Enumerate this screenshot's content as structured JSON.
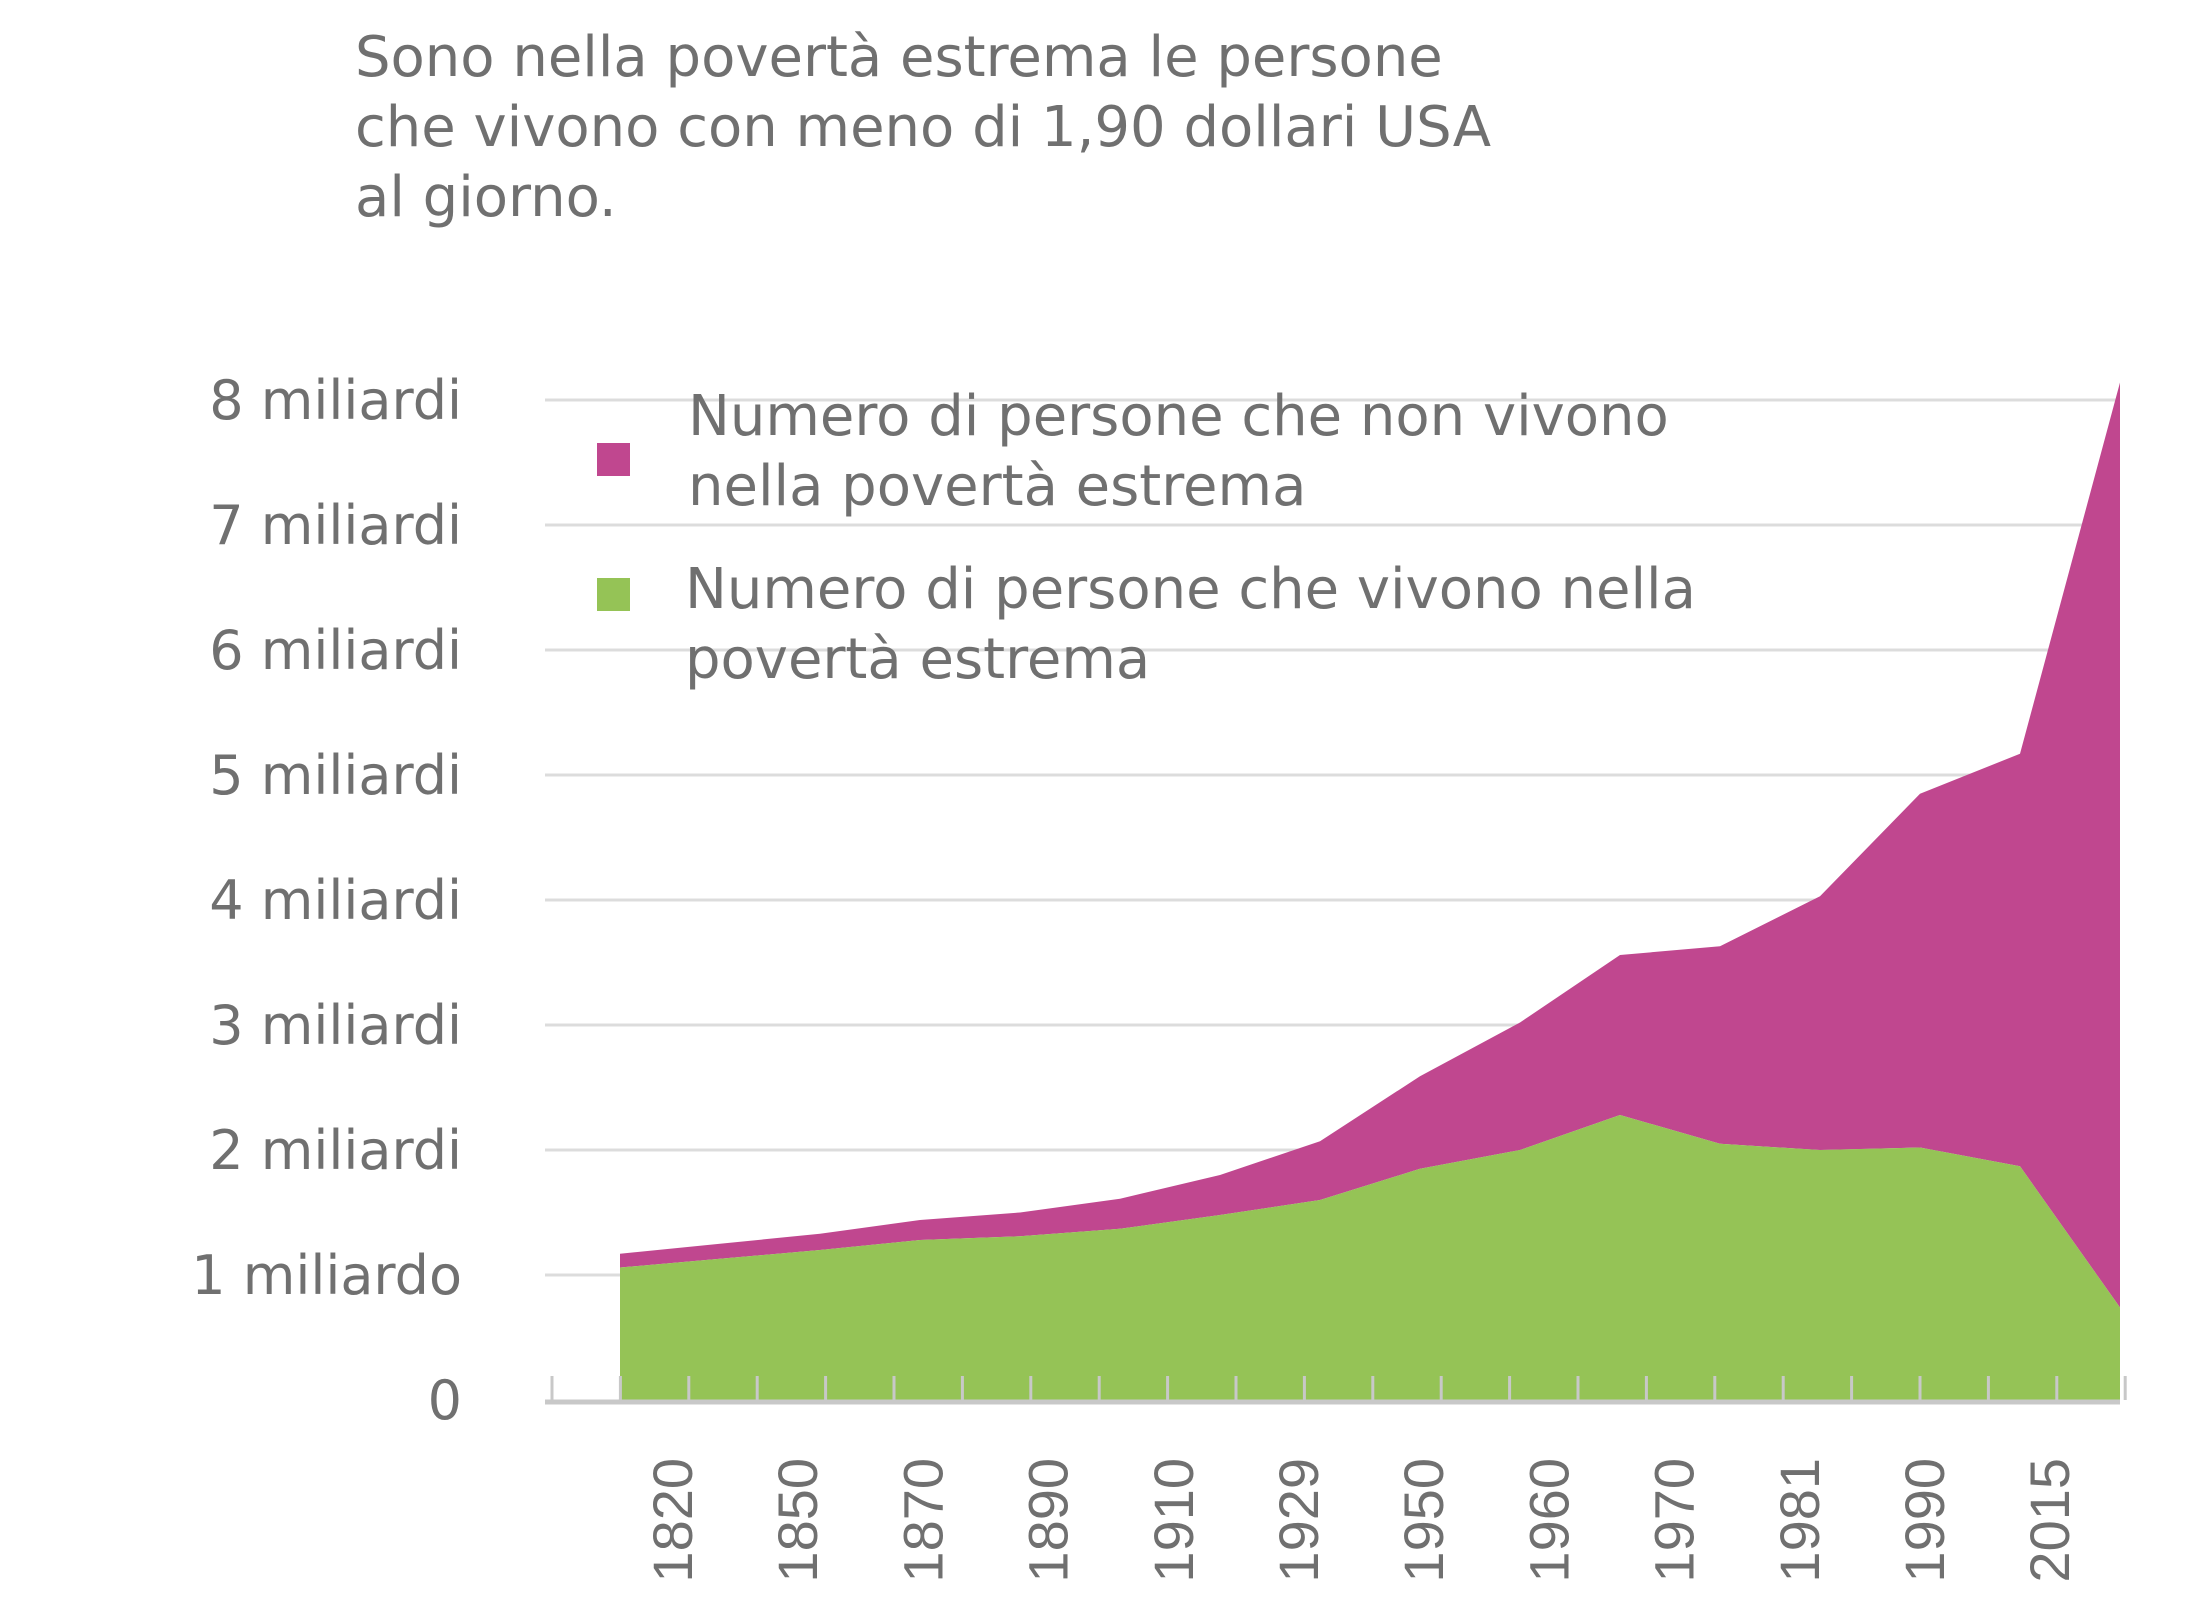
{
  "chart_data": {
    "type": "area",
    "stacked": true,
    "title_lines": [
      "Sono nella povertà estrema le persone",
      "che vivono con meno di 1,90 dollari USA",
      "al giorno."
    ],
    "y_tick_labels": [
      "0",
      "1 miliardo",
      "2 miliardi",
      "3 miliardi",
      "4 miliardi",
      "5 miliardi",
      "6 miliardi",
      "7 miliardi",
      "8 miliardi"
    ],
    "y_tick_values": [
      0,
      1,
      2,
      3,
      4,
      5,
      6,
      7,
      8
    ],
    "ylim": [
      0,
      8
    ],
    "y_unit": "miliardi",
    "x_tick_labels": [
      "1820",
      "1850",
      "1870",
      "1890",
      "1910",
      "1929",
      "1950",
      "1960",
      "1970",
      "1981",
      "1990",
      "2015"
    ],
    "legend_position": "top-left",
    "series": [
      {
        "name": "Numero di persone che non vivono nella povertà estrema",
        "legend_lines": [
          "Numero di persone che non vivono",
          "nella povertà estrema"
        ],
        "color": "#c0478f",
        "values": [
          0.11,
          0.12,
          0.13,
          0.16,
          0.19,
          0.24,
          0.32,
          0.47,
          0.74,
          1.02,
          1.28,
          1.58,
          2.03,
          2.83,
          3.3,
          7.4
        ]
      },
      {
        "name": "Numero di persone che vivono nella povertà estrema",
        "legend_lines": [
          "Numero di persone che vivono nella",
          "povertà estrema"
        ],
        "color": "#95c356",
        "values": [
          1.06,
          1.13,
          1.2,
          1.28,
          1.31,
          1.37,
          1.48,
          1.6,
          1.85,
          2.0,
          2.28,
          2.05,
          2.0,
          2.02,
          1.87,
          0.74
        ]
      }
    ]
  }
}
